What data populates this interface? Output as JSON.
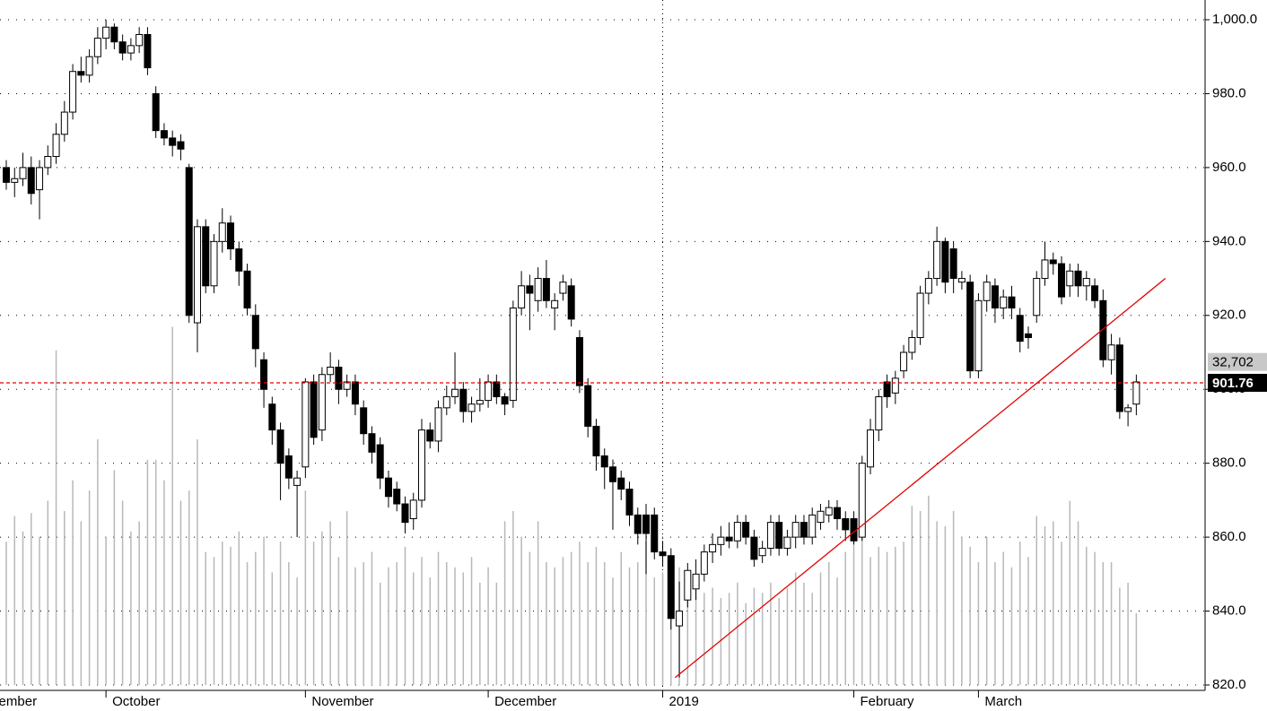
{
  "chart_data": {
    "type": "candlestick",
    "xticks": [
      {
        "value": -5,
        "label": "September"
      },
      {
        "value": 12,
        "label": "October"
      },
      {
        "value": 36,
        "label": "November"
      },
      {
        "value": 58,
        "label": "December"
      },
      {
        "value": 79,
        "label": "2019"
      },
      {
        "value": 102,
        "label": "February"
      },
      {
        "value": 117,
        "label": "March"
      }
    ],
    "ylim": [
      820,
      1000
    ],
    "yticks": [
      {
        "value": 820,
        "label": "820.0"
      },
      {
        "value": 840,
        "label": "840.0"
      },
      {
        "value": 860,
        "label": "860.0"
      },
      {
        "value": 880,
        "label": "880.0"
      },
      {
        "value": 900,
        "label": "900.0"
      },
      {
        "value": 920,
        "label": "920.0"
      },
      {
        "value": 940,
        "label": "940.0"
      },
      {
        "value": 960,
        "label": "960.0"
      },
      {
        "value": 980,
        "label": "980.0"
      },
      {
        "value": 1000,
        "label": "1,000.0"
      }
    ],
    "y2lim": [
      0,
      65000
    ],
    "grid": true,
    "up_color": "#ffffff",
    "down_color": "#000000",
    "volume_color": "#b8b8b8",
    "line_color": "#e00000",
    "open": [
      960,
      956,
      957,
      960,
      954,
      960,
      963,
      969,
      975,
      986,
      985,
      990,
      995,
      998,
      994,
      991,
      993,
      996,
      980,
      970,
      968,
      967,
      960,
      918,
      944,
      928,
      940,
      945,
      938,
      932,
      920,
      908,
      896,
      889,
      882,
      874,
      879,
      902,
      889,
      904,
      906,
      900,
      902,
      895,
      888,
      885,
      876,
      873,
      869,
      865,
      870,
      889,
      886,
      895,
      898,
      900,
      894,
      896,
      897,
      902,
      898,
      897,
      922,
      928,
      924,
      930,
      922,
      926,
      928,
      914,
      901,
      890,
      882,
      879,
      876,
      873,
      866,
      866,
      866,
      856,
      855,
      836,
      843,
      846,
      850,
      856,
      858,
      860,
      859,
      864,
      860,
      855,
      857,
      864,
      857,
      860,
      864,
      860,
      864,
      866,
      868,
      865,
      865,
      860,
      879,
      889,
      902,
      899,
      905,
      910,
      914,
      926,
      930,
      940,
      938,
      929,
      929,
      905,
      924,
      928,
      922,
      925,
      920,
      915,
      920,
      930,
      935,
      934,
      928,
      932,
      928,
      928,
      924,
      908,
      912,
      894,
      896
    ],
    "close": [
      956,
      957,
      960,
      953,
      960,
      963,
      969,
      975,
      986,
      985,
      990,
      995,
      998,
      994,
      991,
      993,
      996,
      987,
      970,
      968,
      966,
      965,
      920,
      944,
      928,
      940,
      945,
      938,
      932,
      922,
      911,
      900,
      889,
      880,
      876,
      876,
      902,
      887,
      904,
      906,
      900,
      902,
      896,
      888,
      883,
      876,
      871,
      869,
      864,
      870,
      889,
      886,
      895,
      898,
      900,
      894,
      896,
      897,
      902,
      898,
      896,
      922,
      928,
      926,
      930,
      924,
      924,
      929,
      919,
      901,
      890,
      882,
      879,
      875,
      873,
      866,
      861,
      861,
      856,
      855,
      838,
      840,
      851,
      850,
      856,
      858,
      860,
      859,
      864,
      860,
      854,
      857,
      864,
      857,
      860,
      864,
      860,
      866,
      867,
      868,
      865,
      862,
      859,
      880,
      889,
      898,
      898,
      903,
      910,
      914,
      926,
      930,
      940,
      929,
      930,
      930,
      905,
      924,
      929,
      922,
      925,
      922,
      913,
      914,
      930,
      935,
      934,
      925,
      932,
      928,
      930,
      924,
      908,
      912,
      894,
      895,
      902
    ],
    "high": [
      962,
      960,
      964,
      963,
      962,
      966,
      972,
      978,
      988,
      990,
      992,
      998,
      1000,
      999,
      996,
      995,
      998,
      998,
      982,
      972,
      970,
      969,
      961,
      946,
      946,
      942,
      949,
      947,
      940,
      934,
      923,
      910,
      898,
      891,
      884,
      878,
      903,
      904,
      906,
      910,
      908,
      904,
      904,
      897,
      890,
      887,
      878,
      875,
      871,
      872,
      892,
      891,
      897,
      901,
      910,
      902,
      898,
      903,
      904,
      904,
      899,
      924,
      932,
      931,
      933,
      935,
      926,
      931,
      930,
      916,
      903,
      892,
      884,
      881,
      878,
      875,
      868,
      869,
      868,
      859,
      857,
      848,
      853,
      854,
      858,
      861,
      863,
      864,
      866,
      866,
      862,
      859,
      866,
      866,
      862,
      866,
      866,
      868,
      869,
      870,
      870,
      867,
      867,
      882,
      892,
      900,
      904,
      905,
      912,
      916,
      928,
      932,
      944,
      941,
      940,
      932,
      931,
      926,
      931,
      930,
      927,
      928,
      922,
      917,
      932,
      940,
      937,
      936,
      934,
      934,
      932,
      930,
      927,
      915,
      914,
      896,
      904
    ],
    "low": [
      954,
      952,
      955,
      950,
      946,
      958,
      961,
      967,
      973,
      983,
      983,
      988,
      992,
      992,
      989,
      989,
      991,
      985,
      968,
      966,
      963,
      962,
      918,
      910,
      926,
      926,
      937,
      935,
      928,
      920,
      906,
      895,
      885,
      870,
      873,
      860,
      876,
      885,
      886,
      902,
      896,
      898,
      893,
      885,
      880,
      873,
      868,
      867,
      861,
      862,
      868,
      884,
      883,
      893,
      896,
      891,
      891,
      894,
      895,
      896,
      893,
      895,
      920,
      916,
      921,
      922,
      916,
      924,
      917,
      899,
      887,
      878,
      873,
      862,
      870,
      863,
      858,
      850,
      854,
      852,
      835,
      822,
      841,
      843,
      848,
      853,
      855,
      857,
      857,
      858,
      852,
      853,
      855,
      855,
      855,
      857,
      858,
      858,
      862,
      864,
      862,
      859,
      858,
      859,
      877,
      886,
      895,
      896,
      903,
      908,
      912,
      923,
      928,
      926,
      926,
      927,
      903,
      903,
      921,
      918,
      919,
      919,
      910,
      911,
      918,
      928,
      931,
      923,
      925,
      925,
      924,
      922,
      906,
      904,
      892,
      890,
      893
    ],
    "volume": [
      14000,
      16500,
      15000,
      16800,
      14500,
      18000,
      32700,
      17000,
      20000,
      16000,
      19000,
      24000,
      14500,
      21000,
      18000,
      15000,
      16000,
      22000,
      22000,
      20000,
      35000,
      18000,
      19000,
      24000,
      13000,
      12500,
      14000,
      13500,
      15000,
      12000,
      13000,
      14500,
      11000,
      14000,
      12000,
      10500,
      19000,
      14000,
      15000,
      16000,
      12500,
      17000,
      11500,
      12000,
      13000,
      10000,
      11500,
      12000,
      13500,
      11000,
      12500,
      10500,
      13000,
      12000,
      11500,
      11000,
      12500,
      10000,
      11500,
      10000,
      16000,
      17000,
      14500,
      13000,
      16000,
      12000,
      11500,
      12500,
      13000,
      14000,
      12000,
      13500,
      12000,
      10500,
      13000,
      11500,
      12000,
      14000,
      10500,
      11000,
      12000,
      11500,
      9500,
      10000,
      9000,
      9500,
      8500,
      9000,
      10000,
      8000,
      9500,
      9000,
      10000,
      8500,
      9500,
      11000,
      10000,
      9000,
      11000,
      12000,
      10500,
      13000,
      14500,
      16000,
      12500,
      13500,
      13000,
      13500,
      14000,
      17500,
      17000,
      18500,
      16000,
      15500,
      17000,
      14500,
      13500,
      12000,
      14500,
      12000,
      13000,
      11500,
      14000,
      12500,
      16500,
      15500,
      16000,
      14000,
      18000,
      16000,
      13500,
      13000,
      12000,
      12000,
      9500,
      10000,
      7000
    ],
    "volume_label": {
      "value": 32702,
      "label": "32,702"
    },
    "last_price": 901.76,
    "trendline": {
      "x": [
        80.5,
        139.5
      ],
      "y": [
        822,
        930
      ]
    }
  }
}
